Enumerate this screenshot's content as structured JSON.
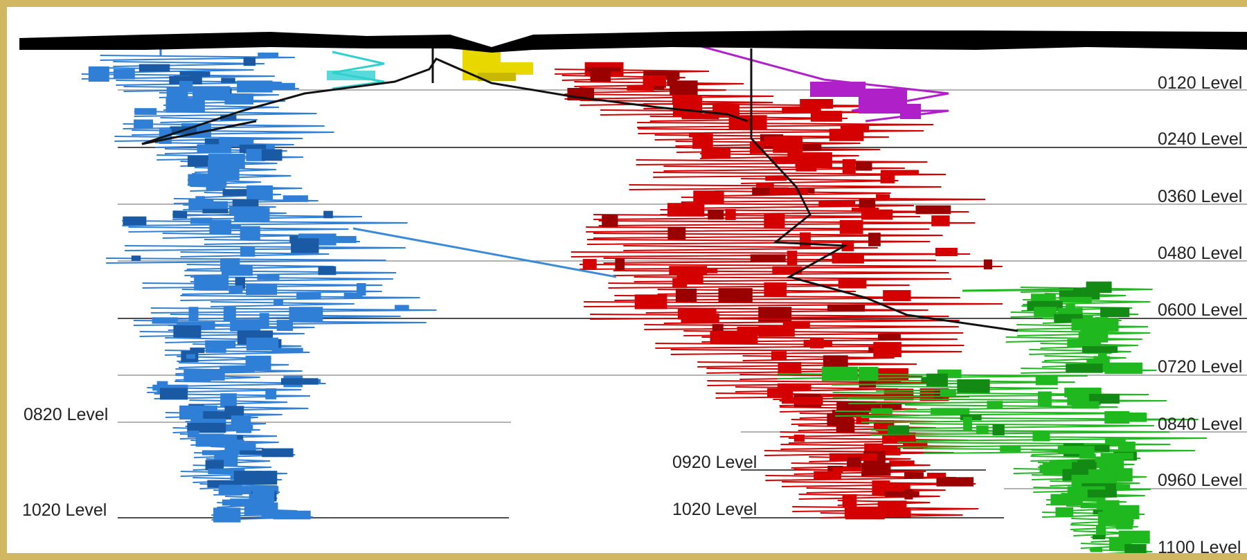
{
  "levels_right": [
    {
      "label": "0120 Level"
    },
    {
      "label": "0240 Level"
    },
    {
      "label": "0360 Level"
    },
    {
      "label": "0480 Level"
    },
    {
      "label": "0600 Level"
    },
    {
      "label": "0720 Level"
    },
    {
      "label": "0840 Level"
    },
    {
      "label": "0960 Level"
    },
    {
      "label": "1100 Level"
    }
  ],
  "levels_left": [
    {
      "label": "0820 Level"
    },
    {
      "label": "1020 Level"
    }
  ],
  "levels_middle": [
    {
      "label": "0920 Level"
    },
    {
      "label": "1020 Level"
    }
  ],
  "colors": {
    "frame": "#d2b762",
    "surface": "#000000",
    "blue_zone": "#2f7fd6",
    "red_zone": "#d40000",
    "green_zone": "#1fb81f",
    "yellow_zone": "#e8d800",
    "cyan_zone": "#2fd0d0",
    "magenta_zone": "#b020c8",
    "level_line_major": "#111111",
    "level_line_minor": "#999999"
  }
}
